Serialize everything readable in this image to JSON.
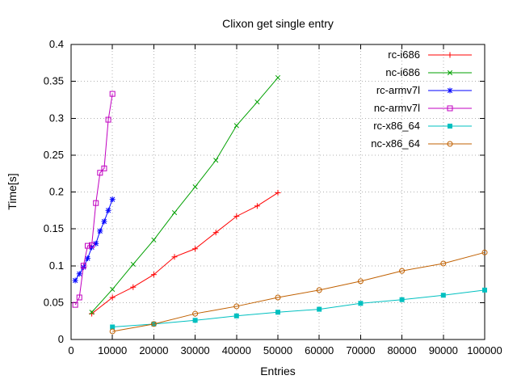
{
  "chart_data": {
    "type": "line",
    "title": "Clixon get single entry",
    "xlabel": "Entries",
    "ylabel": "Time[s]",
    "xlim": [
      0,
      100000
    ],
    "ylim": [
      0,
      0.4
    ],
    "grid": true,
    "grid_color": "#b0b0b0",
    "border_color": "#000000",
    "legend_position": "top-right-inside",
    "xticks": {
      "values": [
        0,
        10000,
        20000,
        30000,
        40000,
        50000,
        60000,
        70000,
        80000,
        90000,
        100000
      ],
      "labels": [
        "0",
        "10000",
        "20000",
        "30000",
        "40000",
        "50000",
        "60000",
        "70000",
        "80000",
        "90000",
        "100000"
      ]
    },
    "yticks": {
      "values": [
        0,
        0.05,
        0.1,
        0.15,
        0.2,
        0.25,
        0.3,
        0.35,
        0.4
      ],
      "labels": [
        "0",
        "0.05",
        "0.1",
        "0.15",
        "0.2",
        "0.25",
        "0.3",
        "0.35",
        "0.4"
      ]
    },
    "series": [
      {
        "name": "rc-i686",
        "color": "#ff0000",
        "marker": "plus",
        "x": [
          5000,
          10000,
          15000,
          20000,
          25000,
          30000,
          35000,
          40000,
          45000,
          50000
        ],
        "y": [
          0.035,
          0.057,
          0.071,
          0.088,
          0.112,
          0.123,
          0.145,
          0.167,
          0.181,
          0.199
        ]
      },
      {
        "name": "nc-i686",
        "color": "#00a000",
        "marker": "cross",
        "x": [
          5000,
          10000,
          15000,
          20000,
          25000,
          30000,
          35000,
          40000,
          45000,
          50000
        ],
        "y": [
          0.037,
          0.068,
          0.102,
          0.135,
          0.172,
          0.207,
          0.243,
          0.29,
          0.322,
          0.355
        ]
      },
      {
        "name": "rc-armv7l",
        "color": "#0000ff",
        "marker": "asterisk",
        "x": [
          1000,
          2000,
          3000,
          4000,
          5000,
          6000,
          7000,
          8000,
          9000,
          10000
        ],
        "y": [
          0.08,
          0.089,
          0.098,
          0.11,
          0.125,
          0.13,
          0.147,
          0.16,
          0.175,
          0.19
        ]
      },
      {
        "name": "nc-armv7l",
        "color": "#c000c0",
        "marker": "square-open",
        "x": [
          1000,
          2000,
          3000,
          4000,
          5000,
          6000,
          7000,
          8000,
          9000,
          10000
        ],
        "y": [
          0.047,
          0.057,
          0.1,
          0.127,
          0.128,
          0.185,
          0.226,
          0.232,
          0.298,
          0.333
        ]
      },
      {
        "name": "rc-x86_64",
        "color": "#00c0c0",
        "marker": "square-filled",
        "x": [
          10000,
          20000,
          30000,
          40000,
          50000,
          60000,
          70000,
          80000,
          90000,
          100000
        ],
        "y": [
          0.017,
          0.021,
          0.026,
          0.032,
          0.037,
          0.041,
          0.049,
          0.054,
          0.06,
          0.067
        ]
      },
      {
        "name": "nc-x86_64",
        "color": "#c06000",
        "marker": "circle-open",
        "x": [
          10000,
          20000,
          30000,
          40000,
          50000,
          60000,
          70000,
          80000,
          90000,
          100000
        ],
        "y": [
          0.011,
          0.021,
          0.035,
          0.045,
          0.057,
          0.067,
          0.079,
          0.093,
          0.103,
          0.118
        ]
      }
    ]
  }
}
